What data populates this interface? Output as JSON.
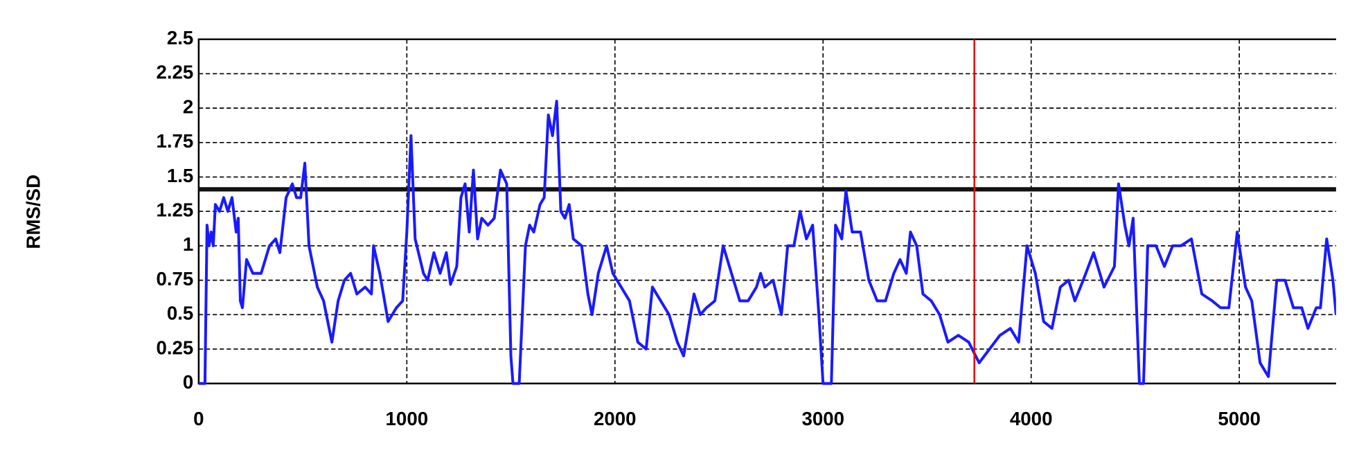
{
  "chart_data": {
    "type": "line",
    "ylabel": "RMS/SD",
    "x": [
      0,
      30,
      40,
      50,
      60,
      70,
      80,
      100,
      120,
      140,
      160,
      180,
      190,
      200,
      210,
      230,
      260,
      300,
      340,
      370,
      390,
      420,
      450,
      470,
      490,
      510,
      530,
      570,
      600,
      640,
      670,
      700,
      730,
      760,
      800,
      830,
      840,
      870,
      910,
      950,
      980,
      1000,
      1020,
      1040,
      1080,
      1100,
      1130,
      1160,
      1190,
      1210,
      1240,
      1260,
      1280,
      1300,
      1320,
      1340,
      1360,
      1390,
      1420,
      1450,
      1480,
      1500,
      1510,
      1540,
      1570,
      1590,
      1610,
      1640,
      1660,
      1680,
      1700,
      1720,
      1740,
      1760,
      1780,
      1800,
      1840,
      1870,
      1890,
      1920,
      1960,
      1990,
      2030,
      2070,
      2110,
      2150,
      2180,
      2220,
      2260,
      2300,
      2330,
      2380,
      2410,
      2440,
      2480,
      2520,
      2560,
      2600,
      2640,
      2680,
      2700,
      2720,
      2760,
      2800,
      2830,
      2860,
      2890,
      2920,
      2950,
      2980,
      3000,
      3040,
      3060,
      3090,
      3110,
      3140,
      3180,
      3220,
      3260,
      3300,
      3340,
      3370,
      3400,
      3420,
      3450,
      3480,
      3520,
      3560,
      3600,
      3650,
      3700,
      3750,
      3800,
      3850,
      3900,
      3940,
      3980,
      4020,
      4060,
      4100,
      4140,
      4180,
      4210,
      4250,
      4300,
      4350,
      4400,
      4420,
      4450,
      4470,
      4490,
      4520,
      4540,
      4560,
      4600,
      4640,
      4680,
      4720,
      4770,
      4820,
      4870,
      4910,
      4950,
      4990,
      5030,
      5060,
      5100,
      5140,
      5180,
      5220,
      5260,
      5300,
      5330,
      5370,
      5390,
      5420,
      5450,
      5465
    ],
    "series": [
      {
        "color": "#1a1aff",
        "values": [
          0,
          0,
          1.15,
          1.0,
          1.1,
          1.0,
          1.3,
          1.25,
          1.35,
          1.25,
          1.35,
          1.1,
          1.2,
          0.6,
          0.55,
          0.9,
          0.8,
          0.8,
          1.0,
          1.05,
          0.95,
          1.35,
          1.45,
          1.35,
          1.35,
          1.6,
          1.0,
          0.7,
          0.6,
          0.3,
          0.6,
          0.75,
          0.8,
          0.65,
          0.7,
          0.65,
          1.0,
          0.8,
          0.45,
          0.55,
          0.6,
          1.1,
          1.8,
          1.05,
          0.8,
          0.75,
          0.95,
          0.8,
          0.95,
          0.72,
          0.85,
          1.35,
          1.45,
          1.1,
          1.55,
          1.05,
          1.2,
          1.15,
          1.2,
          1.55,
          1.45,
          0.2,
          0,
          0,
          1.0,
          1.15,
          1.1,
          1.3,
          1.35,
          1.95,
          1.8,
          2.05,
          1.25,
          1.2,
          1.3,
          1.05,
          1.0,
          0.65,
          0.5,
          0.8,
          1.0,
          0.8,
          0.7,
          0.6,
          0.3,
          0.25,
          0.7,
          0.6,
          0.5,
          0.3,
          0.2,
          0.65,
          0.5,
          0.55,
          0.6,
          1.0,
          0.8,
          0.6,
          0.6,
          0.7,
          0.8,
          0.7,
          0.75,
          0.5,
          1.0,
          1.0,
          1.25,
          1.05,
          1.15,
          0.5,
          0,
          0,
          1.15,
          1.05,
          1.4,
          1.1,
          1.1,
          0.75,
          0.6,
          0.6,
          0.8,
          0.9,
          0.8,
          1.1,
          1.0,
          0.65,
          0.6,
          0.5,
          0.3,
          0.35,
          0.3,
          0.15,
          0.25,
          0.35,
          0.4,
          0.3,
          1.0,
          0.8,
          0.45,
          0.4,
          0.7,
          0.75,
          0.6,
          0.75,
          0.95,
          0.7,
          0.85,
          1.45,
          1.15,
          1.0,
          1.2,
          0,
          0,
          1.0,
          1.0,
          0.85,
          1.0,
          1.0,
          1.05,
          0.65,
          0.6,
          0.55,
          0.55,
          1.1,
          0.7,
          0.6,
          0.15,
          0.05,
          0.75,
          0.75,
          0.55,
          0.55,
          0.4,
          0.55,
          0.55,
          1.05,
          0.75,
          0.5
        ]
      }
    ],
    "xlim": [
      0,
      5465
    ],
    "ylim": [
      0,
      2.5
    ],
    "xticks": [
      0,
      1000,
      2000,
      3000,
      4000,
      5000
    ],
    "yticks": [
      0,
      0.25,
      0.5,
      0.75,
      1,
      1.25,
      1.5,
      1.75,
      2,
      2.25,
      2.5
    ],
    "grid": true,
    "threshold": 1.41,
    "marker_x": 3727
  }
}
